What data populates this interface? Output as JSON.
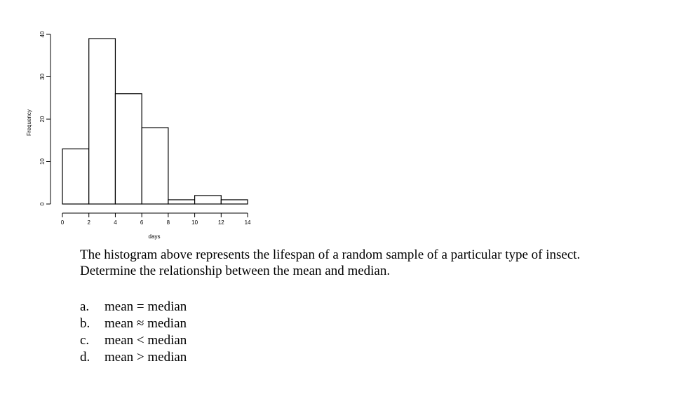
{
  "chart_data": {
    "type": "bar",
    "bins": [
      [
        0,
        2
      ],
      [
        2,
        4
      ],
      [
        4,
        6
      ],
      [
        6,
        8
      ],
      [
        8,
        10
      ],
      [
        10,
        12
      ],
      [
        12,
        14
      ]
    ],
    "values": [
      13,
      39,
      26,
      18,
      1,
      2,
      1
    ],
    "xlabel": "days",
    "ylabel": "Frequency",
    "xlim": [
      0,
      14
    ],
    "ylim": [
      0,
      40
    ],
    "xticks": [
      "0",
      "2",
      "4",
      "6",
      "8",
      "10",
      "12",
      "14"
    ],
    "yticks": [
      "0",
      "10",
      "20",
      "30",
      "40"
    ],
    "grid": false
  },
  "question": {
    "line1": "The histogram above represents the lifespan of a random sample of a particular type of insect.",
    "line2": "Determine the relationship between the mean and median."
  },
  "options": [
    {
      "letter": "a.",
      "text": "mean = median"
    },
    {
      "letter": "b.",
      "text": "mean ≈ median"
    },
    {
      "letter": "c.",
      "text": "mean < median"
    },
    {
      "letter": "d.",
      "text": "mean > median"
    }
  ]
}
